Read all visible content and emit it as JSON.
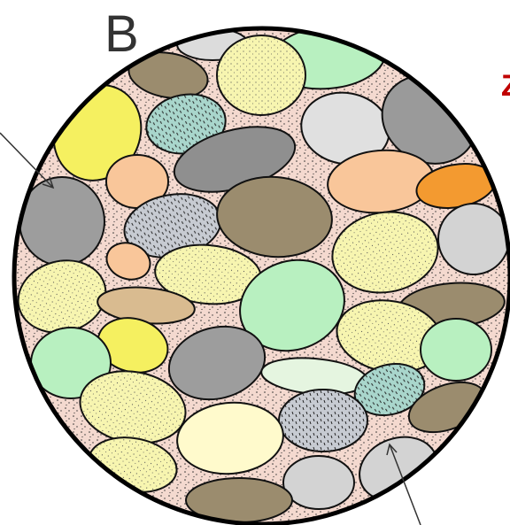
{
  "labels": {
    "panel": "B",
    "side": "Z"
  }
}
